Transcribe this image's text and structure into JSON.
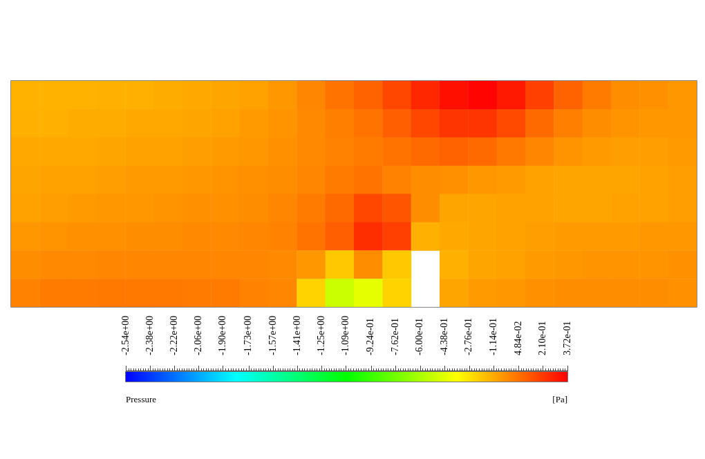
{
  "chart_data": {
    "type": "heatmap",
    "categories": [
      null,
      null,
      null,
      null,
      null,
      null,
      null,
      null,
      null,
      null,
      null,
      null,
      null,
      null,
      null,
      null,
      null,
      null,
      null,
      null,
      null,
      null,
      null,
      null
    ],
    "y_categories": [
      null,
      null,
      null,
      null,
      null,
      null,
      null,
      null
    ],
    "cells": [
      [
        -0.14,
        -0.14,
        -0.14,
        -0.13,
        -0.13,
        -0.12,
        -0.11,
        -0.1,
        -0.09,
        -0.06,
        -0.01,
        0.04,
        0.09,
        0.17,
        0.26,
        0.33,
        0.36,
        0.3,
        0.19,
        0.09,
        0.02,
        -0.03,
        -0.04,
        -0.06
      ],
      [
        -0.13,
        -0.13,
        -0.12,
        -0.12,
        -0.11,
        -0.11,
        -0.1,
        -0.09,
        -0.07,
        -0.05,
        -0.02,
        0.01,
        0.04,
        0.1,
        0.17,
        0.22,
        0.22,
        0.16,
        0.07,
        0.01,
        -0.03,
        -0.05,
        -0.06,
        -0.06
      ],
      [
        -0.11,
        -0.11,
        -0.11,
        -0.1,
        -0.09,
        -0.09,
        -0.08,
        -0.07,
        -0.06,
        -0.04,
        -0.02,
        0.0,
        0.02,
        0.04,
        0.07,
        0.09,
        0.07,
        0.03,
        -0.01,
        -0.05,
        -0.07,
        -0.08,
        -0.08,
        -0.07
      ],
      [
        -0.1,
        -0.09,
        -0.09,
        -0.08,
        -0.07,
        -0.07,
        -0.06,
        -0.05,
        -0.04,
        -0.03,
        -0.01,
        0.02,
        0.04,
        0.0,
        -0.03,
        -0.04,
        -0.06,
        -0.07,
        -0.09,
        -0.1,
        -0.1,
        -0.1,
        -0.09,
        -0.08
      ],
      [
        -0.09,
        -0.08,
        -0.07,
        -0.06,
        -0.06,
        -0.05,
        -0.04,
        -0.04,
        -0.03,
        -0.01,
        0.02,
        0.07,
        0.17,
        0.13,
        -0.03,
        -0.1,
        -0.1,
        -0.09,
        -0.09,
        -0.1,
        -0.1,
        -0.09,
        -0.09,
        -0.08
      ],
      [
        -0.06,
        -0.05,
        -0.04,
        -0.04,
        -0.03,
        -0.03,
        -0.02,
        -0.02,
        -0.01,
        0.0,
        0.04,
        0.1,
        0.24,
        0.19,
        -0.13,
        -0.11,
        -0.1,
        -0.09,
        -0.08,
        -0.07,
        -0.07,
        -0.07,
        -0.06,
        -0.06
      ],
      [
        -0.03,
        -0.02,
        -0.02,
        -0.01,
        -0.01,
        -0.01,
        -0.01,
        -0.01,
        -0.01,
        -0.02,
        -0.06,
        -0.2,
        -0.03,
        -0.2,
        null,
        -0.13,
        -0.1,
        -0.09,
        -0.07,
        -0.06,
        -0.05,
        -0.05,
        -0.05,
        -0.04
      ],
      [
        0.0,
        0.02,
        0.02,
        0.03,
        0.03,
        0.03,
        0.02,
        0.02,
        0.0,
        -0.01,
        -0.23,
        -0.51,
        -0.43,
        -0.23,
        null,
        -0.1,
        -0.07,
        -0.06,
        -0.04,
        -0.03,
        -0.03,
        -0.03,
        -0.03,
        -0.04
      ]
    ],
    "clim": [
      -2.54,
      0.372
    ],
    "cticks": [
      {
        "value": -2.54,
        "label": "-2.54e+00"
      },
      {
        "value": -2.38,
        "label": "-2.38e+00"
      },
      {
        "value": -2.22,
        "label": "-2.22e+00"
      },
      {
        "value": -2.06,
        "label": "-2.06e+00"
      },
      {
        "value": -1.9,
        "label": "-1.90e+00"
      },
      {
        "value": -1.73,
        "label": "-1.73e+00"
      },
      {
        "value": -1.57,
        "label": "-1.57e+00"
      },
      {
        "value": -1.41,
        "label": "-1.41e+00"
      },
      {
        "value": -1.25,
        "label": "-1.25e+00"
      },
      {
        "value": -1.09,
        "label": "-1.09e+00"
      },
      {
        "value": -0.924,
        "label": "-9.24e-01"
      },
      {
        "value": -0.762,
        "label": "-7.62e-01"
      },
      {
        "value": -0.6,
        "label": "-6.00e-01"
      },
      {
        "value": -0.438,
        "label": "-4.38e-01"
      },
      {
        "value": -0.276,
        "label": "-2.76e-01"
      },
      {
        "value": -0.114,
        "label": "-1.14e-01"
      },
      {
        "value": 0.0484,
        "label": "4.84e-02"
      },
      {
        "value": 0.21,
        "label": "2.10e-01"
      },
      {
        "value": 0.372,
        "label": "3.72e-01"
      }
    ],
    "clabel": "Pressure",
    "annotations": [
      "[Pa]"
    ],
    "tick_labels": false
  }
}
